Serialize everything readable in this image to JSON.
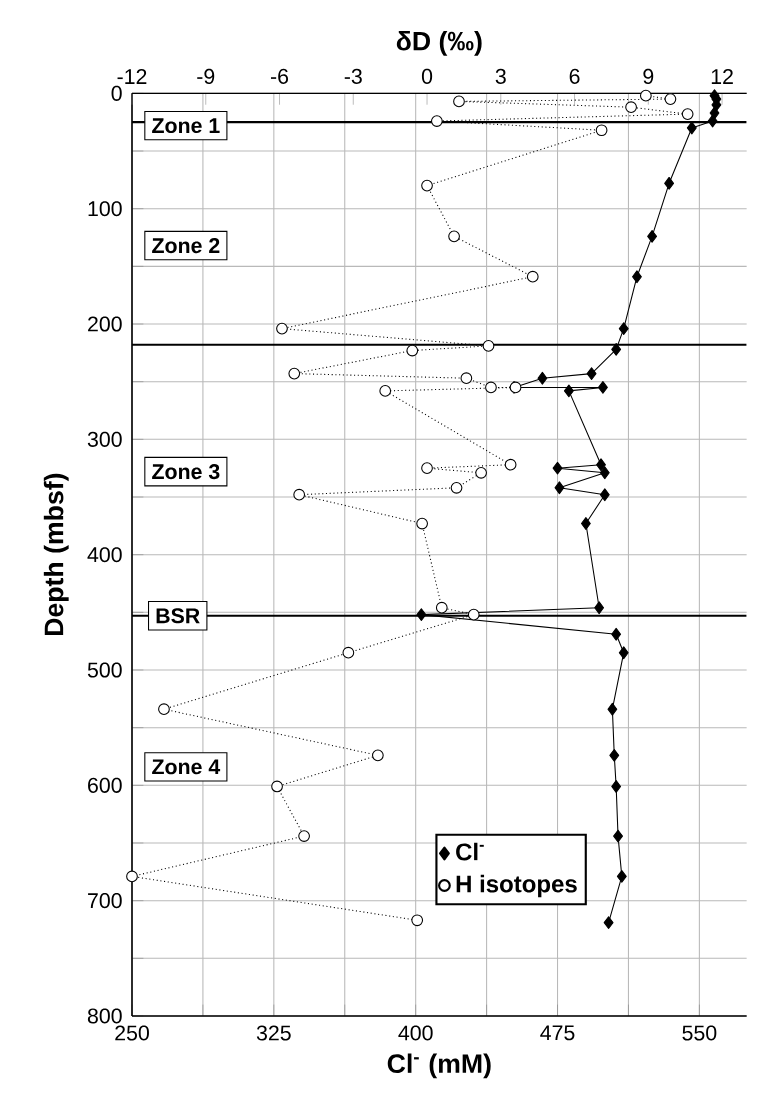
{
  "chart_data": {
    "type": "line",
    "xlabel": "Cl$^{-}$ (mM)",
    "ylabel": "Depth (mbsf)",
    "x2label": "δD (‰)",
    "xlim": [
      250,
      575
    ],
    "ylim": [
      800,
      0
    ],
    "x2lim": [
      -12,
      13
    ],
    "xticks": [
      250,
      {
        "value": 287.5,
        "label": null
      },
      325,
      {
        "value": 362.5,
        "label": null
      },
      400,
      {
        "value": 437.5,
        "label": null
      },
      475,
      {
        "value": 512.5,
        "label": null
      },
      550
    ],
    "x2ticks": [
      -12,
      -9,
      -6,
      -3,
      0,
      3,
      6,
      9,
      12
    ],
    "yticks": [
      0,
      {
        "value": 50,
        "label": null
      },
      100,
      {
        "value": 150,
        "label": null
      },
      200,
      {
        "value": 250,
        "label": null
      },
      300,
      {
        "value": 350,
        "label": null
      },
      400,
      {
        "value": 450,
        "label": null
      },
      500,
      {
        "value": 550,
        "label": null
      },
      600,
      {
        "value": 650,
        "label": null
      },
      700,
      {
        "value": 750,
        "label": null
      },
      800
    ],
    "grid": true,
    "legend": "bottom right",
    "series": [
      {
        "name": "Cl$^{-}$",
        "color": "#000000",
        "marker": "diamond",
        "line_style": "solid",
        "x": [
          558,
          559,
          559,
          558,
          557,
          546,
          534,
          525,
          517,
          510,
          506,
          493,
          467,
          452,
          499,
          481,
          498,
          475,
          500,
          476,
          500,
          490,
          497,
          403,
          506,
          510,
          504,
          505,
          506,
          507,
          509,
          502
        ],
        "values": [
          2,
          5,
          10,
          17,
          24,
          30,
          78,
          124,
          159,
          204,
          222,
          243,
          247,
          255,
          255,
          258,
          322,
          325,
          329,
          342,
          348,
          373,
          446,
          452,
          469,
          485,
          534,
          574,
          601,
          644,
          679,
          719
        ]
      },
      {
        "name": "H isotopes",
        "color": "#000000",
        "marker": "circle",
        "line_style": "dotted",
        "axis": "x2",
        "x": [
          8.9,
          9.9,
          1.3,
          8.3,
          10.6,
          0.4,
          7.1,
          0.0,
          1.1,
          4.3,
          -5.9,
          2.5,
          -0.6,
          -5.4,
          1.6,
          2.6,
          3.6,
          -1.7,
          3.4,
          0.0,
          2.2,
          1.2,
          -5.2,
          -0.2,
          0.6,
          1.9,
          -3.2,
          -10.7,
          -2.0,
          -6.1,
          -5.0,
          -12.0,
          -0.4
        ],
        "values": [
          2,
          5,
          7,
          12,
          18,
          24,
          32,
          80,
          124,
          159,
          204,
          219,
          223,
          243,
          247,
          255,
          255,
          258,
          322,
          325,
          329,
          342,
          348,
          373,
          446,
          452,
          485,
          534,
          574,
          601,
          644,
          679,
          717
        ]
      }
    ],
    "ref_lines": [
      {
        "axis": "y",
        "value": 25,
        "label": null
      },
      {
        "axis": "y",
        "value": 218,
        "label": null
      },
      {
        "axis": "y",
        "value": 453,
        "label": "BSR"
      }
    ],
    "annotations": [
      "Zone 1",
      "Zone 2",
      "Zone 3",
      "Zone 4"
    ]
  }
}
